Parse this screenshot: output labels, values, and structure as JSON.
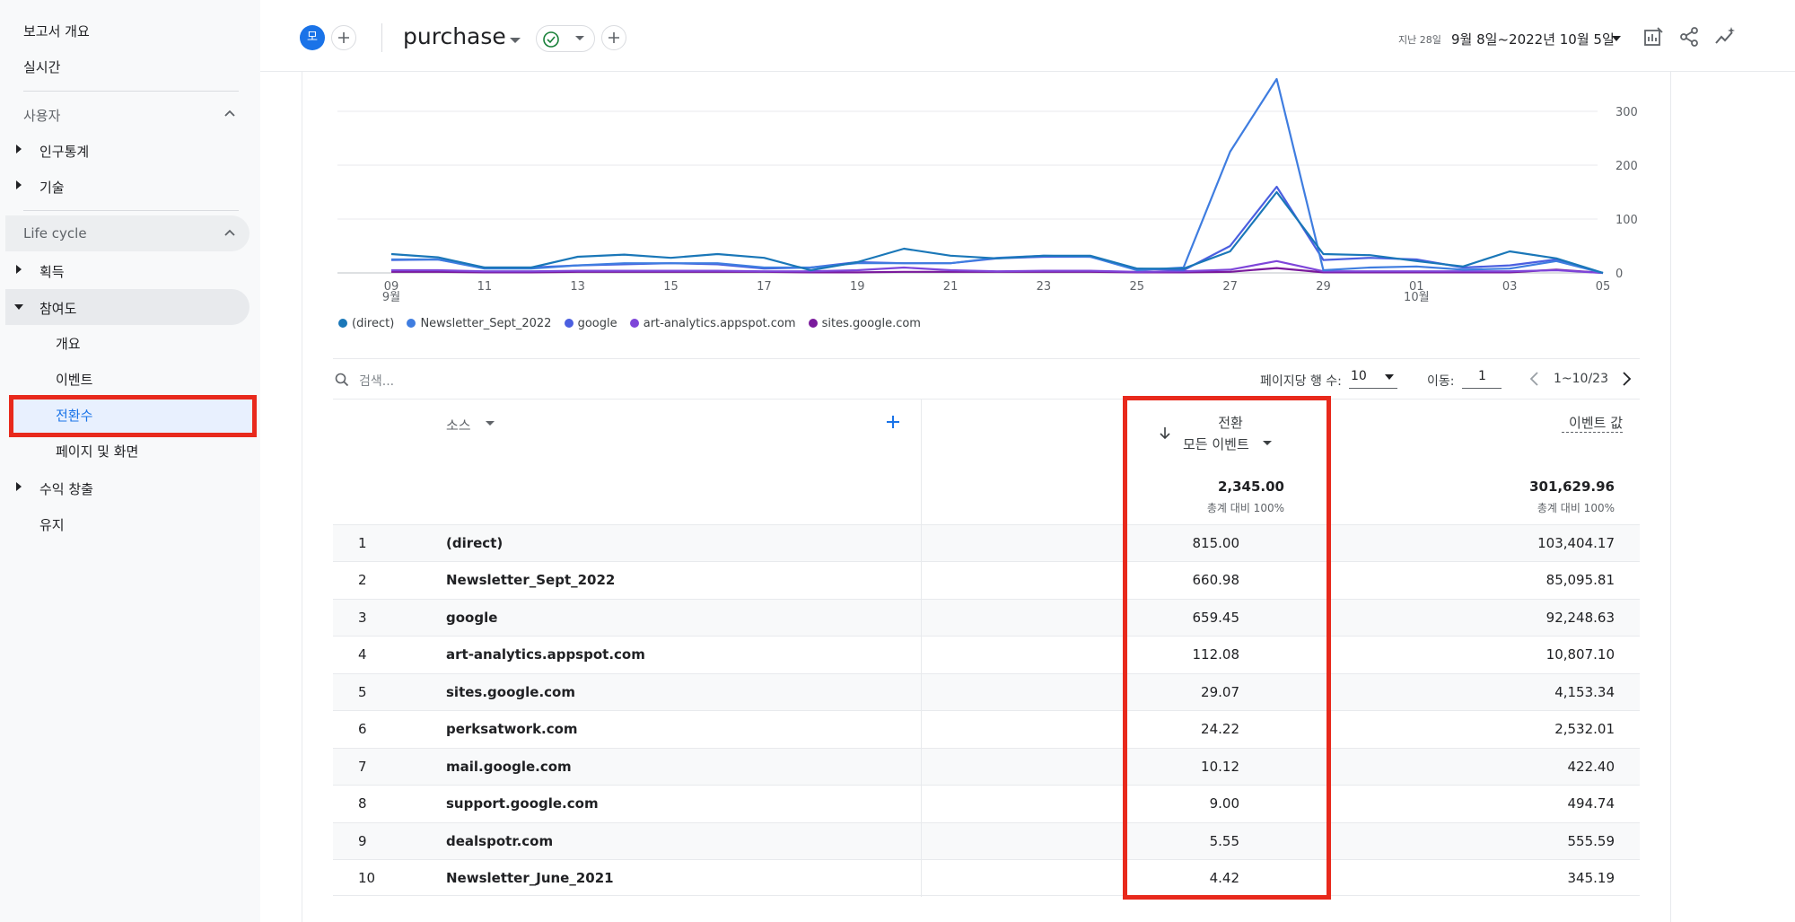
{
  "sidebar": {
    "top_links": [
      "보고서 개요",
      "실시간"
    ],
    "user_section": {
      "label": "사용자",
      "items": [
        "인구통계",
        "기술"
      ]
    },
    "lifecycle_section": {
      "label": "Life cycle"
    },
    "acquisition": "획득",
    "engagement": {
      "label": "참여도",
      "children": [
        "개요",
        "이벤트",
        "전환수",
        "페이지 및 화면"
      ],
      "active_child": "전환수"
    },
    "monetization": "수익 창출",
    "retention": "유지"
  },
  "header": {
    "avatar_letter": "모",
    "title": "purchase",
    "date_prefix": "지난 28일",
    "date_range": "9월 8일~2022년 10월 5일"
  },
  "chart_data": {
    "type": "line",
    "x": [
      "09 9월",
      "",
      "11",
      "",
      "13",
      "",
      "15",
      "",
      "17",
      "",
      "19",
      "",
      "21",
      "",
      "23",
      "",
      "25",
      "",
      "27",
      "",
      "29",
      "",
      "01 10월",
      "",
      "03",
      "",
      "05"
    ],
    "x_tick_labels": [
      {
        "top": "09",
        "bottom": "9월"
      },
      {
        "top": "11",
        "bottom": ""
      },
      {
        "top": "13",
        "bottom": ""
      },
      {
        "top": "15",
        "bottom": ""
      },
      {
        "top": "17",
        "bottom": ""
      },
      {
        "top": "19",
        "bottom": ""
      },
      {
        "top": "21",
        "bottom": ""
      },
      {
        "top": "23",
        "bottom": ""
      },
      {
        "top": "25",
        "bottom": ""
      },
      {
        "top": "27",
        "bottom": ""
      },
      {
        "top": "29",
        "bottom": ""
      },
      {
        "top": "01",
        "bottom": "10월"
      },
      {
        "top": "03",
        "bottom": ""
      },
      {
        "top": "05",
        "bottom": ""
      }
    ],
    "y_ticks": [
      0,
      100,
      200,
      300
    ],
    "ylim": [
      0,
      360
    ],
    "series": [
      {
        "name": "(direct)",
        "color": "#1a77b8",
        "values": [
          35,
          29,
          10,
          10,
          30,
          34,
          28,
          35,
          28,
          5,
          20,
          45,
          32,
          27,
          32,
          32,
          8,
          8,
          40,
          150,
          35,
          33,
          22,
          12,
          40,
          27,
          0
        ]
      },
      {
        "name": "Newsletter_Sept_2022",
        "color": "#3f7de0",
        "values": [
          25,
          25,
          8,
          8,
          14,
          18,
          18,
          18,
          10,
          10,
          18,
          18,
          18,
          28,
          32,
          30,
          5,
          10,
          225,
          360,
          5,
          10,
          12,
          6,
          8,
          22,
          0
        ]
      },
      {
        "name": "google",
        "color": "#4b5fe0",
        "values": [
          24,
          25,
          10,
          10,
          14,
          16,
          18,
          16,
          8,
          10,
          20,
          18,
          18,
          27,
          30,
          30,
          8,
          5,
          50,
          160,
          24,
          28,
          25,
          10,
          14,
          25,
          0
        ]
      },
      {
        "name": "art-analytics.appspot.com",
        "color": "#7e45d9",
        "values": [
          5,
          5,
          3,
          3,
          4,
          4,
          4,
          4,
          3,
          3,
          5,
          10,
          5,
          3,
          4,
          4,
          2,
          3,
          6,
          22,
          3,
          3,
          3,
          3,
          3,
          5,
          0
        ]
      },
      {
        "name": "sites.google.com",
        "color": "#7a1a9c",
        "values": [
          2,
          2,
          1,
          1,
          2,
          2,
          2,
          2,
          2,
          1,
          1,
          2,
          2,
          2,
          2,
          2,
          1,
          1,
          2,
          9,
          1,
          1,
          1,
          1,
          1,
          6,
          0
        ]
      }
    ]
  },
  "toolbar": {
    "search_placeholder": "검색...",
    "rows_per_page_label": "페이지당 행 수:",
    "rows_per_page_value": "10",
    "goto_label": "이동:",
    "goto_value": "1",
    "range_text": "1~10/23"
  },
  "table": {
    "source_header": "소스",
    "conversions_header": "전환",
    "conversions_subheader": "모든 이벤트",
    "event_value_header": "이벤트 값",
    "totals": {
      "conversions": "2,345.00",
      "conversions_pct": "총계 대비 100%",
      "event_value": "301,629.96",
      "event_value_pct": "총계 대비 100%"
    },
    "rows": [
      {
        "idx": "1",
        "source": "(direct)",
        "conversions": "815.00",
        "event_value": "103,404.17"
      },
      {
        "idx": "2",
        "source": "Newsletter_Sept_2022",
        "conversions": "660.98",
        "event_value": "85,095.81"
      },
      {
        "idx": "3",
        "source": "google",
        "conversions": "659.45",
        "event_value": "92,248.63"
      },
      {
        "idx": "4",
        "source": "art-analytics.appspot.com",
        "conversions": "112.08",
        "event_value": "10,807.10"
      },
      {
        "idx": "5",
        "source": "sites.google.com",
        "conversions": "29.07",
        "event_value": "4,153.34"
      },
      {
        "idx": "6",
        "source": "perksatwork.com",
        "conversions": "24.22",
        "event_value": "2,532.01"
      },
      {
        "idx": "7",
        "source": "mail.google.com",
        "conversions": "10.12",
        "event_value": "422.40"
      },
      {
        "idx": "8",
        "source": "support.google.com",
        "conversions": "9.00",
        "event_value": "494.74"
      },
      {
        "idx": "9",
        "source": "dealspotr.com",
        "conversions": "5.55",
        "event_value": "555.59"
      },
      {
        "idx": "10",
        "source": "Newsletter_June_2021",
        "conversions": "4.42",
        "event_value": "345.19"
      }
    ]
  },
  "colors": {
    "highlight_box": "#e8291c",
    "accent": "#1a73e8"
  }
}
